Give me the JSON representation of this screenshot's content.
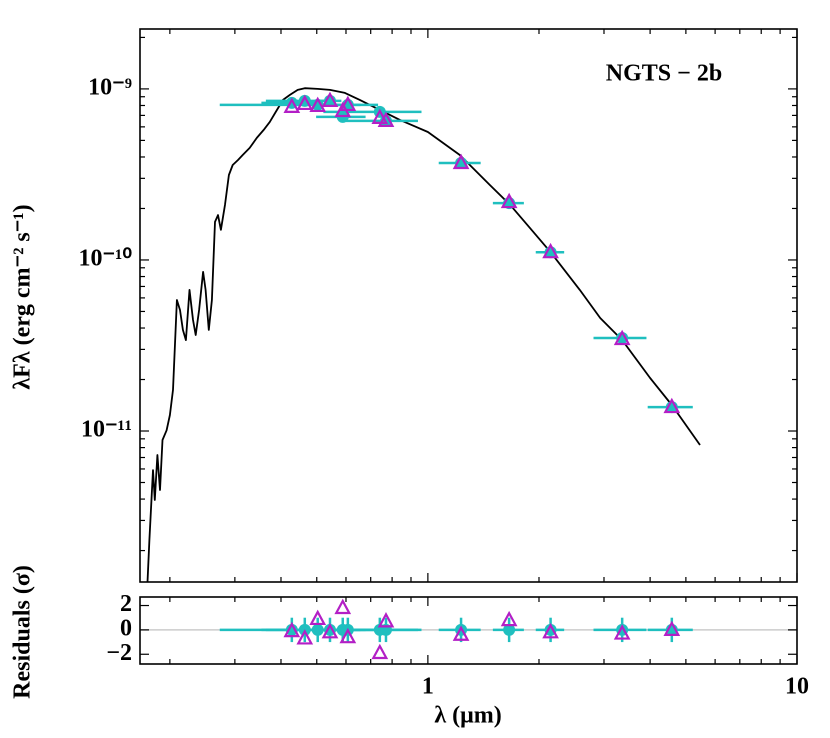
{
  "chart_data": [
    {
      "type": "line",
      "annotation": "NGTS − 2b",
      "ylabel": "λFλ (erg cm⁻² s⁻¹)",
      "log_x": true,
      "log_y": true,
      "xlim": [
        0.166,
        10
      ],
      "ylim": [
        1.31e-12,
        2.24e-09
      ],
      "yticks": [
        {
          "value": 1e-11,
          "label": "10⁻¹¹"
        },
        {
          "value": 1e-10,
          "label": "10⁻¹⁰"
        },
        {
          "value": 1e-09,
          "label": "10⁻⁹"
        }
      ],
      "yminorticks": [
        2e-12,
        3e-12,
        4e-12,
        5e-12,
        6e-12,
        7e-12,
        8e-12,
        9e-12,
        2e-11,
        3e-11,
        4e-11,
        5e-11,
        6e-11,
        7e-11,
        8e-11,
        9e-11,
        2e-10,
        3e-10,
        4e-10,
        5e-10,
        6e-10,
        7e-10,
        8e-10,
        9e-10,
        2e-09
      ],
      "series": [
        {
          "type": "line",
          "color": "#000000",
          "x": [
            0.174,
            0.176,
            0.18,
            0.182,
            0.185,
            0.188,
            0.191,
            0.196,
            0.2,
            0.204,
            0.209,
            0.213,
            0.217,
            0.221,
            0.226,
            0.231,
            0.235,
            0.24,
            0.246,
            0.25,
            0.255,
            0.26,
            0.265,
            0.27,
            0.275,
            0.282,
            0.289,
            0.296,
            0.306,
            0.315,
            0.329,
            0.344,
            0.359,
            0.373,
            0.387,
            0.405,
            0.423,
            0.444,
            0.464,
            0.503,
            0.543,
            0.596,
            0.654,
            0.741,
            0.84,
            1.0,
            1.22,
            1.47,
            1.67,
            1.89,
            2.15,
            2.58,
            2.93,
            3.36,
            4.0,
            4.58,
            5.46
          ],
          "values": [
            1.31e-12,
            2.31e-12,
            5.91e-12,
            3.95e-12,
            7.24e-12,
            4.52e-12,
            8.86e-12,
            1.01e-11,
            1.24e-11,
            1.74e-11,
            5.83e-11,
            5.1e-11,
            3.9e-11,
            3.4e-11,
            6.68e-11,
            4.46e-11,
            3.64e-11,
            5.1e-11,
            8.51e-11,
            6.68e-11,
            3.9e-11,
            5.83e-11,
            1.67e-10,
            1.83e-10,
            1.5e-10,
            2.1e-10,
            3.14e-10,
            3.59e-10,
            3.84e-10,
            4.11e-10,
            4.52e-10,
            5.17e-10,
            5.76e-10,
            6.41e-10,
            7.33e-10,
            8.62e-10,
            9.22e-10,
            9.87e-10,
            1.01e-09,
            1e-09,
            9.87e-10,
            9.48e-10,
            8.62e-10,
            7.54e-10,
            6.59e-10,
            5.6e-10,
            4.11e-10,
            2.75e-10,
            2.1e-10,
            1.54e-10,
            1.11e-10,
            6.68e-11,
            4.58e-11,
            3.4e-11,
            2.04e-11,
            1.42e-11,
            8.28e-12
          ]
        },
        {
          "type": "scatter",
          "marker": "circle",
          "color": "#1fbfbf",
          "x": [
            0.428,
            0.464,
            0.503,
            0.543,
            0.588,
            0.607,
            0.741,
            0.77,
            1.23,
            1.66,
            2.15,
            3.36,
            4.58
          ],
          "xerr": [
            0.074,
            0.1,
            0.23,
            0.04,
            0.09,
            0.05,
            0.22,
            0.17,
            0.16,
            0.16,
            0.19,
            0.55,
            0.64
          ],
          "values": [
            8.28e-10,
            8.51e-10,
            8.06e-10,
            8.51e-10,
            6.86e-10,
            8.06e-10,
            7.34e-10,
            6.5e-10,
            3.69e-10,
            2.15e-10,
            1.11e-10,
            3.5e-11,
            1.38e-11
          ]
        },
        {
          "type": "scatter",
          "marker": "triangle",
          "color": "#b31fc6",
          "x": [
            0.428,
            0.464,
            0.503,
            0.543,
            0.588,
            0.607,
            0.741,
            0.77,
            1.23,
            1.66,
            2.15,
            3.36,
            4.58
          ],
          "values": [
            7.85e-10,
            8.17e-10,
            7.95e-10,
            8.51e-10,
            7.43e-10,
            8.06e-10,
            6.77e-10,
            6.5e-10,
            3.69e-10,
            2.18e-10,
            1.11e-10,
            3.45e-11,
            1.38e-11
          ]
        }
      ]
    },
    {
      "type": "scatter",
      "ylabel": "Residuals (σ)",
      "xlabel": "λ (μm)",
      "log_x": true,
      "log_y": false,
      "xlim": [
        0.166,
        10
      ],
      "xticks": [
        1,
        10
      ],
      "xminorticks": [
        0.2,
        0.3,
        0.4,
        0.5,
        0.6,
        0.7,
        0.8,
        0.9,
        2,
        3,
        4,
        5,
        6,
        7,
        8,
        9
      ],
      "ylim": [
        -2.8,
        2.7
      ],
      "yticks": [
        {
          "value": -2,
          "label": "−2"
        },
        0,
        2
      ],
      "hline": 0,
      "series": [
        {
          "type": "scatter",
          "marker": "circle",
          "color": "#1fbfbf",
          "x": [
            0.428,
            0.464,
            0.503,
            0.543,
            0.588,
            0.607,
            0.741,
            0.77,
            1.23,
            1.66,
            2.15,
            3.36,
            4.58
          ],
          "xerr": [
            0.074,
            0.1,
            0.23,
            0.04,
            0.09,
            0.05,
            0.22,
            0.17,
            0.16,
            0.16,
            0.19,
            0.55,
            0.64
          ],
          "values": [
            0,
            0,
            0,
            0,
            0,
            0,
            0,
            0,
            0,
            0,
            0,
            0,
            0
          ],
          "yerr": [
            1,
            1,
            1,
            1,
            1,
            1,
            1,
            1,
            1,
            1,
            1,
            1,
            1
          ]
        },
        {
          "type": "scatter",
          "marker": "triangle",
          "color": "#b31fc6",
          "x": [
            0.428,
            0.464,
            0.503,
            0.543,
            0.588,
            0.607,
            0.741,
            0.77,
            1.23,
            1.66,
            2.15,
            3.36,
            4.58
          ],
          "values": [
            -0.1,
            -0.7,
            0.9,
            -0.2,
            1.8,
            -0.6,
            -1.9,
            0.7,
            -0.4,
            0.8,
            -0.2,
            -0.3,
            0
          ]
        }
      ]
    }
  ]
}
